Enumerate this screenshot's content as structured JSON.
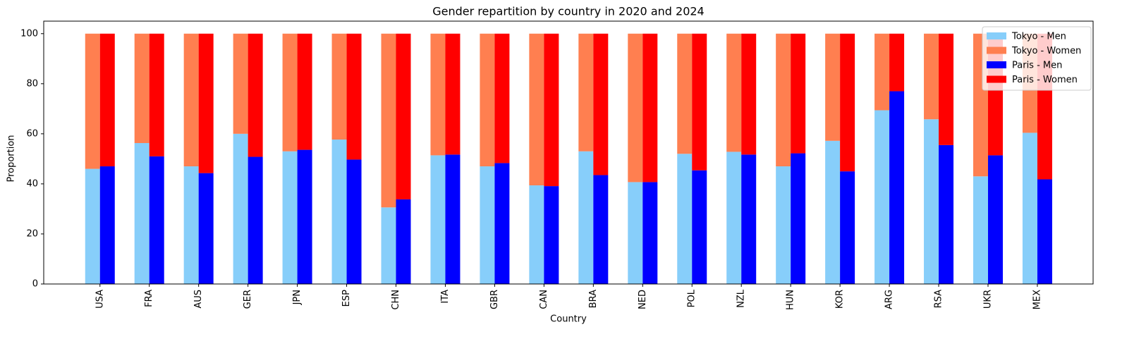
{
  "chart_data": {
    "type": "grouped_stacked_bar",
    "title": "Gender repartition by country in 2020 and 2024",
    "x_label": "Country",
    "y_label": "Proportion",
    "categories": [
      "USA",
      "FRA",
      "AUS",
      "GER",
      "JPN",
      "ESP",
      "CHN",
      "ITA",
      "GBR",
      "CAN",
      "BRA",
      "NED",
      "POL",
      "NZL",
      "HUN",
      "KOR",
      "ARG",
      "RSA",
      "UKR",
      "MEX"
    ],
    "series": [
      {
        "name": "Tokyo - Men",
        "color": "#87cefa",
        "group": "Tokyo",
        "values": [
          46,
          56.3,
          47,
          60,
          53,
          57.7,
          30.6,
          51.4,
          47,
          39.4,
          53,
          40.7,
          52,
          52.8,
          47,
          57.2,
          69.4,
          65.8,
          43,
          60.4
        ]
      },
      {
        "name": "Tokyo - Women",
        "color": "#ff7f50",
        "group": "Tokyo",
        "values": [
          54,
          43.7,
          53,
          40,
          47,
          42.3,
          69.4,
          48.6,
          53,
          60.6,
          47,
          59.3,
          48,
          47.2,
          53,
          42.8,
          30.6,
          34.2,
          57,
          39.6
        ]
      },
      {
        "name": "Paris - Men",
        "color": "#0000ff",
        "group": "Paris",
        "values": [
          47,
          51,
          44.3,
          50.8,
          53.6,
          49.7,
          33.8,
          51.7,
          48.3,
          39.1,
          43.5,
          40.7,
          45.4,
          51.7,
          52.2,
          45,
          77,
          55.5,
          51.4,
          41.8
        ]
      },
      {
        "name": "Paris - Women",
        "color": "#ff0000",
        "group": "Paris",
        "values": [
          53,
          49,
          55.7,
          49.2,
          46.4,
          50.3,
          66.2,
          48.3,
          51.7,
          60.9,
          56.5,
          59.3,
          54.6,
          48.3,
          47.8,
          55,
          23,
          44.5,
          48.6,
          58.2
        ]
      }
    ],
    "ylim": [
      0,
      105
    ],
    "yticks": [
      0,
      20,
      40,
      60,
      80,
      100
    ],
    "legend": "upper right"
  }
}
